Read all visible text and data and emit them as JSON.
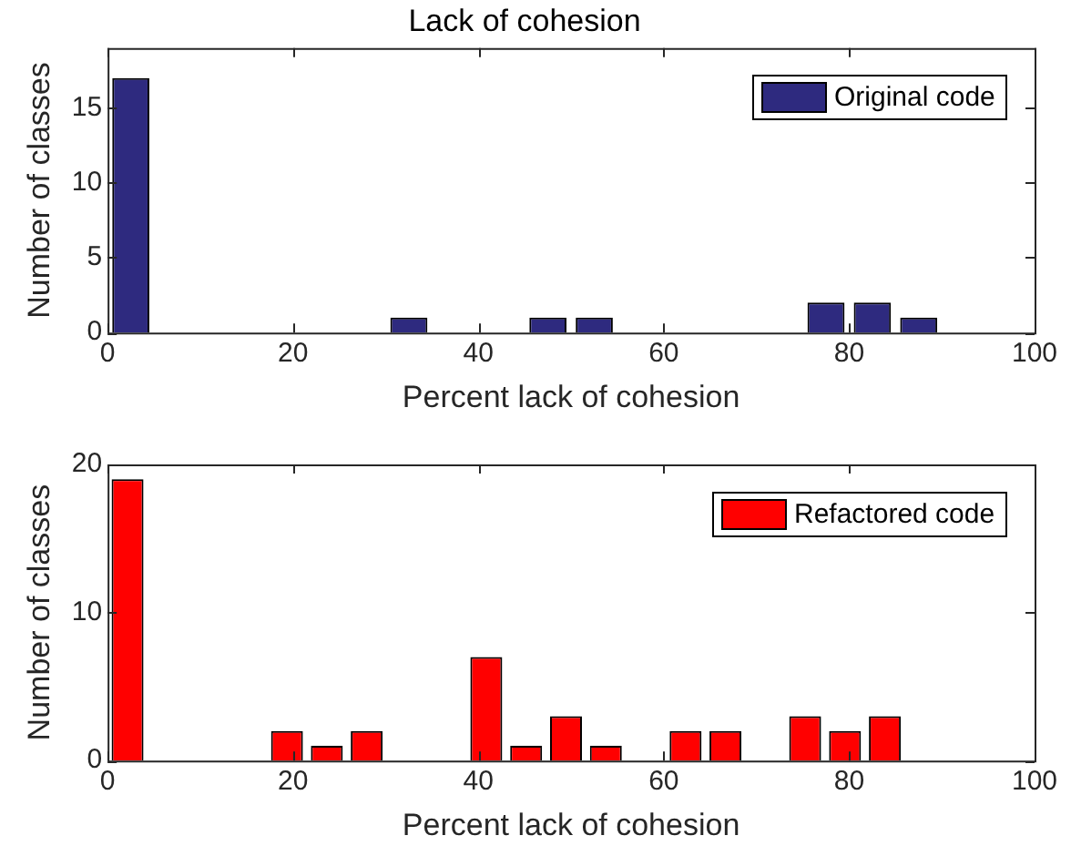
{
  "chart_data": [
    {
      "type": "histogram",
      "title": "Lack of cohesion",
      "xlabel": "Percent lack of cohesion",
      "ylabel": "Number of classes",
      "bins": [
        0,
        5,
        10,
        15,
        20,
        25,
        30,
        35,
        40,
        45,
        50,
        55,
        60,
        65,
        70,
        75,
        80,
        85,
        90,
        95,
        100
      ],
      "series": [
        {
          "name": "Original code",
          "color": "#2e2a7f",
          "values": [
            17,
            0,
            0,
            0,
            0,
            0,
            1,
            0,
            0,
            1,
            1,
            0,
            0,
            0,
            0,
            2,
            2,
            1,
            0,
            0
          ]
        }
      ],
      "xlim": [
        0,
        100
      ],
      "xticks": [
        0,
        20,
        40,
        60,
        80,
        100
      ],
      "ylim": [
        0,
        19
      ],
      "yticks": [
        0,
        5,
        10,
        15
      ],
      "legend": "top right",
      "grid": false
    },
    {
      "type": "histogram",
      "xlabel": "Percent lack of cohesion",
      "ylabel": "Number of classes",
      "bins": [
        0,
        4.3,
        8.6,
        12.9,
        17.2,
        21.5,
        25.8,
        30.1,
        34.4,
        38.7,
        43,
        47.3,
        51.6,
        55.9,
        60.2,
        64.5,
        68.8,
        73.1,
        77.4,
        81.7,
        86
      ],
      "series": [
        {
          "name": "Refactored code",
          "color": "#ff0000",
          "values": [
            19,
            0,
            0,
            0,
            2,
            1,
            2,
            0,
            0,
            7,
            1,
            3,
            1,
            0,
            2,
            2,
            0,
            3,
            2,
            3
          ]
        }
      ],
      "xlim": [
        0,
        100
      ],
      "xticks": [
        0,
        20,
        40,
        60,
        80,
        100
      ],
      "ylim": [
        0,
        20
      ],
      "yticks": [
        0,
        10,
        20
      ],
      "legend": "top right",
      "grid": false
    }
  ]
}
